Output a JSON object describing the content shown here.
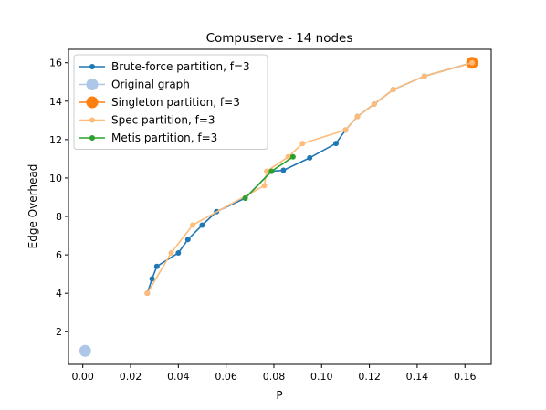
{
  "chart_data": {
    "type": "line",
    "title": "Compuserve - 14 nodes",
    "xlabel": "P",
    "ylabel": "Edge Overhead",
    "xlim": [
      -0.006,
      0.171
    ],
    "ylim": [
      0.3,
      16.7
    ],
    "xticks": [
      0.0,
      0.02,
      0.04,
      0.06,
      0.08,
      0.1,
      0.12,
      0.14,
      0.16
    ],
    "xtick_labels": [
      "0.00",
      "0.02",
      "0.04",
      "0.06",
      "0.08",
      "0.10",
      "0.12",
      "0.14",
      "0.16"
    ],
    "yticks": [
      2,
      4,
      6,
      8,
      10,
      12,
      14,
      16
    ],
    "ytick_labels": [
      "2",
      "4",
      "6",
      "8",
      "10",
      "12",
      "14",
      "16"
    ],
    "grid": false,
    "legend_position": "top-left",
    "series": [
      {
        "name": "Brute-force partition, f=3",
        "color": "#1f77b4",
        "marker_size": "small",
        "line": true,
        "x": [
          0.027,
          0.029,
          0.031,
          0.04,
          0.044,
          0.05,
          0.056,
          0.068,
          0.079,
          0.084,
          0.095,
          0.106,
          0.11,
          0.115,
          0.122,
          0.13,
          0.143,
          0.163
        ],
        "y": [
          4.0,
          4.75,
          5.4,
          6.1,
          6.8,
          7.55,
          8.25,
          8.95,
          10.35,
          10.4,
          11.05,
          11.8,
          12.5,
          13.2,
          13.85,
          14.6,
          15.3,
          16.0
        ]
      },
      {
        "name": "Original graph",
        "color": "#aec7e8",
        "marker_size": "large",
        "line": false,
        "x": [
          0.001
        ],
        "y": [
          1.0
        ]
      },
      {
        "name": "Singleton partition, f=3",
        "color": "#ff7f0e",
        "marker_size": "large",
        "line": false,
        "x": [
          0.163
        ],
        "y": [
          16.0
        ]
      },
      {
        "name": "Spec partition, f=3",
        "color": "#ffbb78",
        "marker_size": "small",
        "line": true,
        "x": [
          0.027,
          0.037,
          0.046,
          0.076,
          0.077,
          0.086,
          0.092,
          0.11,
          0.115,
          0.122,
          0.13,
          0.143,
          0.163
        ],
        "y": [
          4.0,
          6.1,
          7.55,
          9.6,
          10.35,
          11.1,
          11.8,
          12.5,
          13.2,
          13.85,
          14.6,
          15.3,
          16.0
        ]
      },
      {
        "name": "Metis partition, f=3",
        "color": "#2ca02c",
        "marker_size": "small",
        "line": true,
        "x": [
          0.068,
          0.079,
          0.088
        ],
        "y": [
          8.95,
          10.35,
          11.1
        ]
      }
    ]
  }
}
